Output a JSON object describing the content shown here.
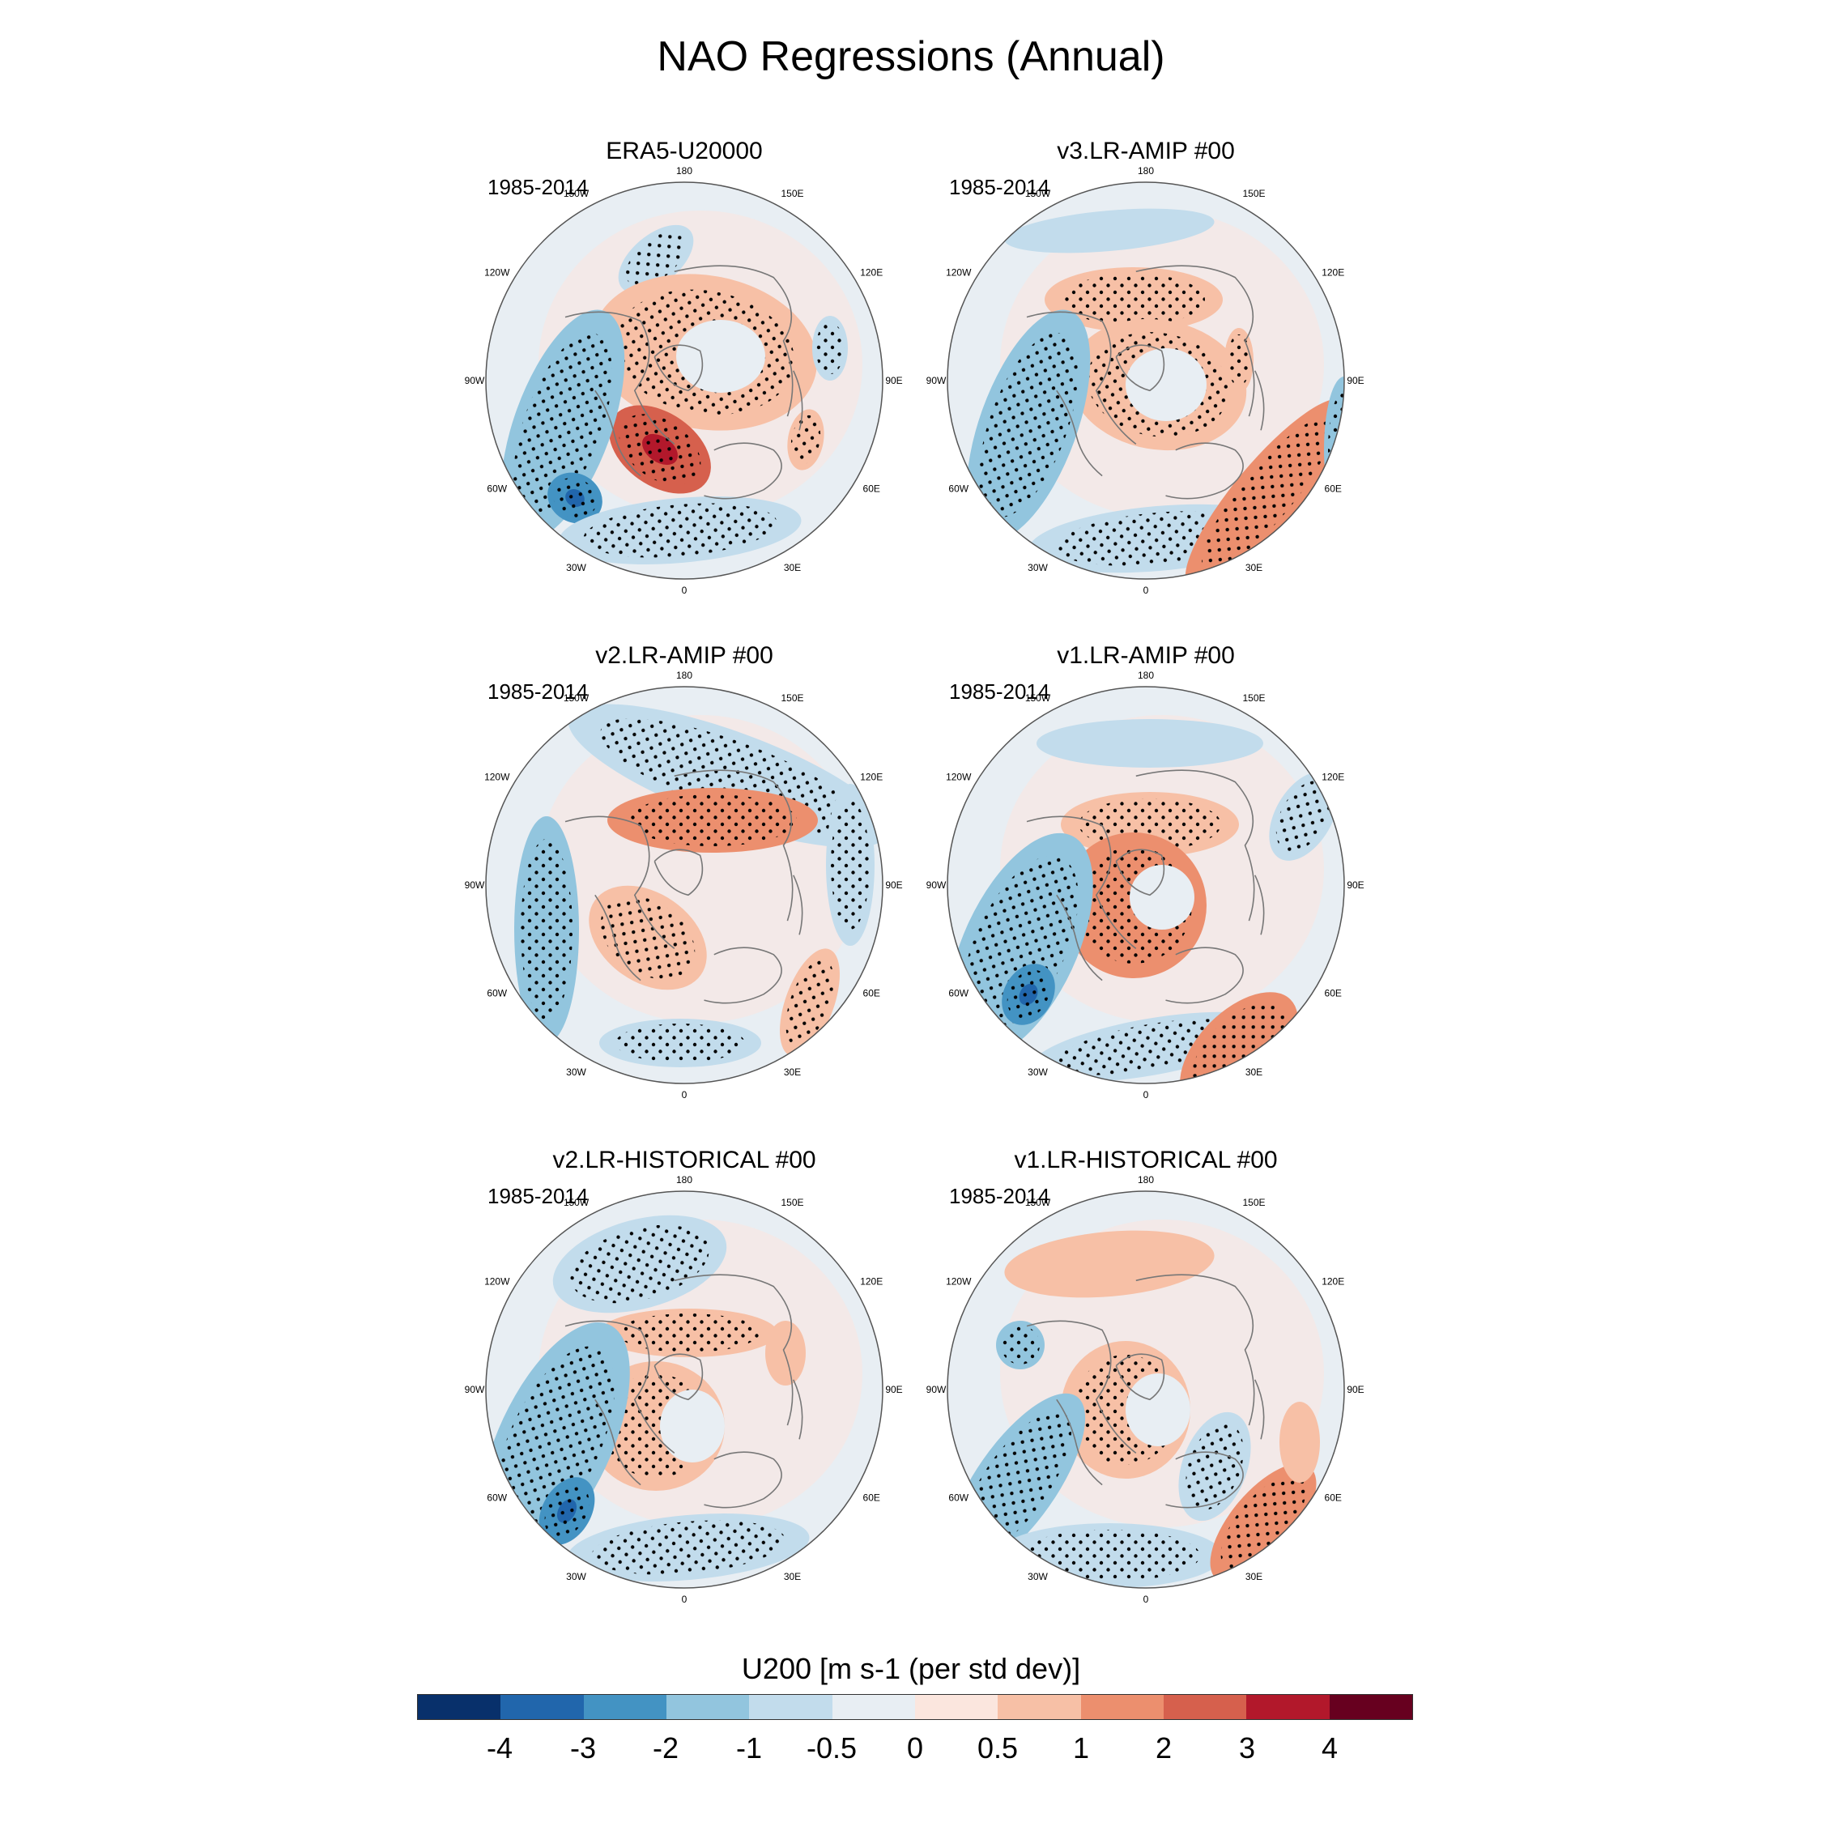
{
  "title": "NAO Regressions (Annual)",
  "panels": [
    {
      "title": "ERA5-U20000",
      "period": "1985-2014"
    },
    {
      "title": "v3.LR-AMIP  #00",
      "period": "1985-2014"
    },
    {
      "title": "v2.LR-AMIP  #00",
      "period": "1985-2014"
    },
    {
      "title": "v1.LR-AMIP  #00",
      "period": "1985-2014"
    },
    {
      "title": "v2.LR-HISTORICAL  #00",
      "period": "1985-2014"
    },
    {
      "title": "v1.LR-HISTORICAL  #00",
      "period": "1985-2014"
    }
  ],
  "longitude_labels": [
    "180",
    "150E",
    "120E",
    "90E",
    "60E",
    "30E",
    "0",
    "30W",
    "60W",
    "90W",
    "120W",
    "150W"
  ],
  "colorbar": {
    "title": "U200 [m s-1 (per std dev)]",
    "labels": [
      "-4",
      "-3",
      "-2",
      "-1",
      "-0.5",
      "0",
      "0.5",
      "1",
      "2",
      "3",
      "4"
    ],
    "colors": [
      "#08306b",
      "#2166ac",
      "#4393c3",
      "#92c5de",
      "#c2dcec",
      "#e8eef3",
      "#fbe6de",
      "#f7c0a6",
      "#ec8f6e",
      "#d6604d",
      "#b2182b",
      "#67001f"
    ]
  }
}
